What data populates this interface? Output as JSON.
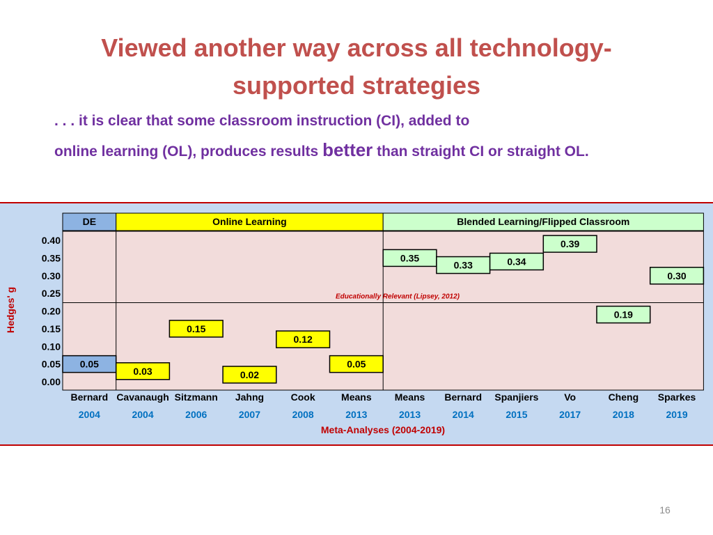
{
  "slide": {
    "title_line1": "Viewed another way across all technology-",
    "title_line2": "supported strategies",
    "subtitle_line1": ". . . it is clear that some classroom instruction (CI), added to",
    "subtitle_line2_a": "online learning (OL), produces results ",
    "subtitle_line2_b": "better",
    "subtitle_line2_c": " than straight CI or straight OL.",
    "page_number": "16"
  },
  "chart_data": {
    "type": "table",
    "ylabel": "Hedges' g",
    "xlabel": "Meta-Analyses (2004-2019)",
    "annotation": "Educationally Relevant (Lipsey, 2012)",
    "annotation_value": 0.2,
    "ylim": [
      0.0,
      0.4
    ],
    "y_ticks": [
      "0.40",
      "0.35",
      "0.30",
      "0.25",
      "0.20",
      "0.15",
      "0.10",
      "0.05",
      "0.00"
    ],
    "groups": [
      {
        "label": "DE",
        "start": 0,
        "span": 1,
        "color": "#8db3e2"
      },
      {
        "label": "Online Learning",
        "start": 1,
        "span": 5,
        "color": "#ffff00"
      },
      {
        "label": "Blended Learning/Flipped Classroom",
        "start": 6,
        "span": 6,
        "color": "#ccffcc"
      }
    ],
    "studies": [
      {
        "author": "Bernard",
        "year": "2004",
        "value": 0.05,
        "label": "0.05"
      },
      {
        "author": "Cavanaugh",
        "year": "2004",
        "value": 0.03,
        "label": "0.03"
      },
      {
        "author": "Sitzmann",
        "year": "2006",
        "value": 0.15,
        "label": "0.15"
      },
      {
        "author": "Jahng",
        "year": "2007",
        "value": 0.02,
        "label": "0.02"
      },
      {
        "author": "Cook",
        "year": "2008",
        "value": 0.12,
        "label": "0.12"
      },
      {
        "author": "Means",
        "year": "2013",
        "value": 0.05,
        "label": "0.05"
      },
      {
        "author": "Means",
        "year": "2013",
        "value": 0.35,
        "label": "0.35"
      },
      {
        "author": "Bernard",
        "year": "2014",
        "value": 0.33,
        "label": "0.33"
      },
      {
        "author": "Spanjiers",
        "year": "2015",
        "value": 0.34,
        "label": "0.34"
      },
      {
        "author": "Vo",
        "year": "2017",
        "value": 0.39,
        "label": "0.39"
      },
      {
        "author": "Cheng",
        "year": "2018",
        "value": 0.19,
        "label": "0.19"
      },
      {
        "author": "Sparkes",
        "year": "2019",
        "value": 0.3,
        "label": "0.30"
      }
    ],
    "colors": {
      "band": "#c5d9f1",
      "grid_area": "#f2dcdb",
      "de_group": "#8db3e2",
      "ol_group": "#ffff00",
      "blended_group": "#ccffcc",
      "ylabel": "#c00000",
      "annotation": "#c00000",
      "year": "#0070c0",
      "xlabel": "#c00000"
    }
  }
}
